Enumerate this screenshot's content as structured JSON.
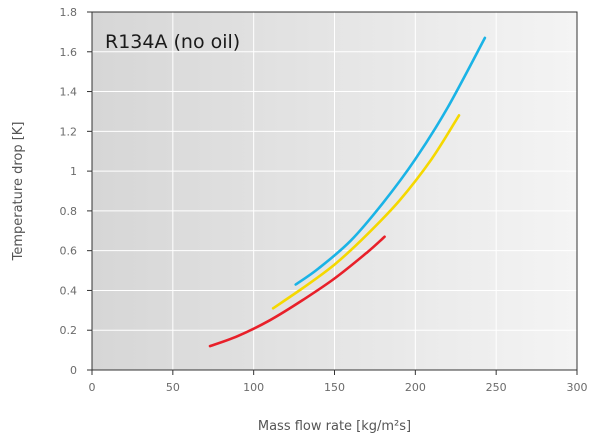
{
  "chart_data": {
    "type": "line",
    "title": "R134A (no oil)",
    "xlabel": "Mass flow rate [kg/m²s]",
    "ylabel": "Temperature drop [K]",
    "xlim": [
      0,
      300
    ],
    "ylim": [
      0,
      1.8
    ],
    "xticks": [
      0,
      50,
      100,
      150,
      200,
      250,
      300
    ],
    "yticks": [
      0,
      0.2,
      0.4,
      0.6,
      0.8,
      1,
      1.2,
      1.4,
      1.6,
      1.8
    ],
    "xtick_labels": [
      "0",
      "50",
      "100",
      "150",
      "200",
      "250",
      "300"
    ],
    "ytick_labels": [
      "0",
      "0.2",
      "0.4",
      "0.6",
      "0.8",
      "1",
      "1.2",
      "1.4",
      "1.6",
      "1.8"
    ],
    "grid": true,
    "legend": "none",
    "series": [
      {
        "color": "#1ab3e6",
        "x": [
          126,
          140,
          160,
          180,
          200,
          220,
          243
        ],
        "y": [
          0.43,
          0.51,
          0.65,
          0.84,
          1.06,
          1.32,
          1.67
        ]
      },
      {
        "color": "#f5d800",
        "x": [
          112,
          130,
          150,
          170,
          190,
          210,
          227
        ],
        "y": [
          0.31,
          0.41,
          0.53,
          0.68,
          0.85,
          1.06,
          1.28
        ]
      },
      {
        "color": "#e8202a",
        "x": [
          73,
          90,
          110,
          130,
          150,
          170,
          181
        ],
        "y": [
          0.12,
          0.17,
          0.25,
          0.35,
          0.46,
          0.59,
          0.67
        ]
      }
    ]
  }
}
